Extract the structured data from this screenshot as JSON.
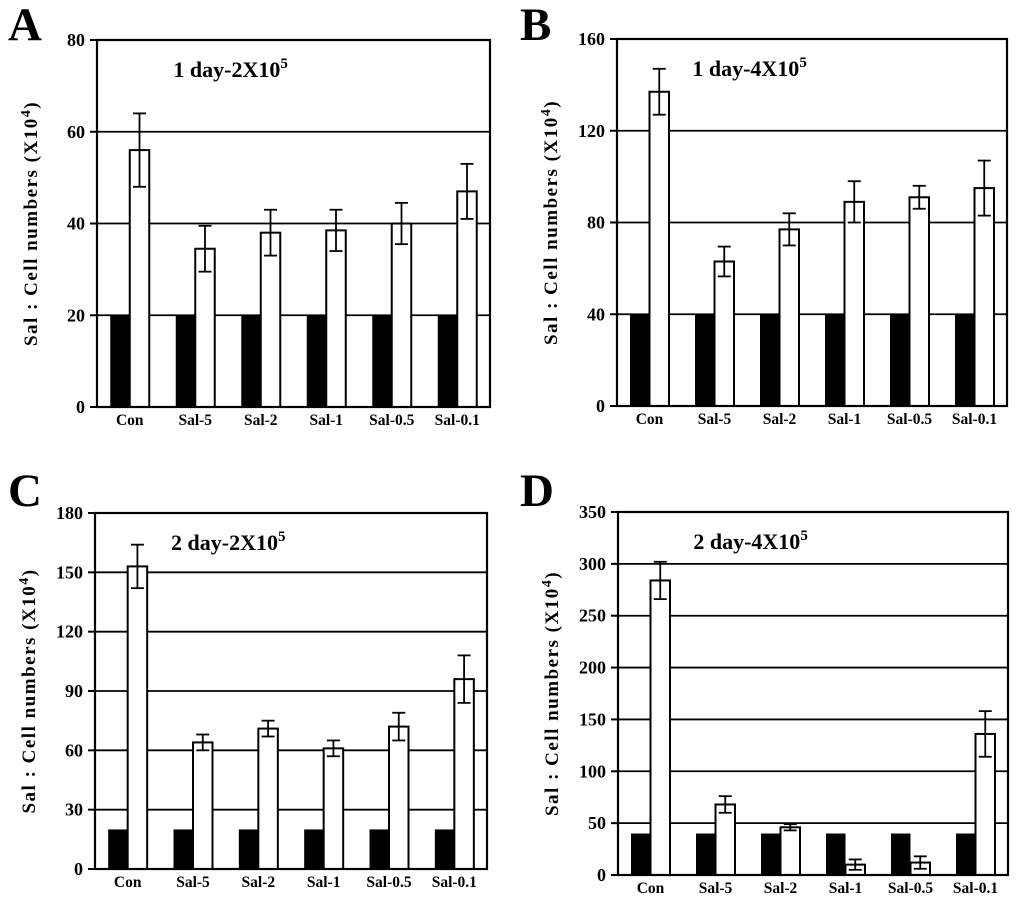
{
  "figure": {
    "background": "#ffffff",
    "panel_letters": [
      "A",
      "B",
      "C",
      "D"
    ]
  },
  "colors": {
    "background": "#ffffff",
    "filled_bar": "#000000",
    "open_bar": "#ffffff",
    "axis": "#000000",
    "gridline": "#000000"
  },
  "chart_data": [
    {
      "type": "bar",
      "panel_letter": "A",
      "title": "1 day-2X10",
      "title_sup": "5",
      "ylabel": "Sal : Cell numbers (X10",
      "ylabel_sup": "4",
      "ylabel_suffix": ")",
      "categories": [
        "Con",
        "Sal-5",
        "Sal-2",
        "Sal-1",
        "Sal-0.5",
        "Sal-0.1"
      ],
      "series": [
        {
          "name": "black bars (seeded 2X10^5)",
          "values": [
            20,
            20,
            20,
            20,
            20,
            20
          ]
        },
        {
          "name": "white bars (cell numbers)",
          "values": [
            56,
            34.5,
            38,
            38.5,
            40,
            47
          ],
          "errors": [
            8,
            5,
            5,
            4.5,
            4.5,
            6
          ]
        }
      ],
      "ylim": [
        0,
        80
      ],
      "ytick_step": 20,
      "yticks": [
        0,
        20,
        40,
        60,
        80
      ],
      "grid": true,
      "legend": "none"
    },
    {
      "type": "bar",
      "panel_letter": "B",
      "title": "1 day-4X10",
      "title_sup": "5",
      "ylabel": "Sal : Cell numbers (X10",
      "ylabel_sup": "4",
      "ylabel_suffix": ")",
      "categories": [
        "Con",
        "Sal-5",
        "Sal-2",
        "Sal-1",
        "Sal-0.5",
        "Sal-0.1"
      ],
      "series": [
        {
          "name": "black bars (seeded 4X10^5)",
          "values": [
            40,
            40,
            40,
            40,
            40,
            40
          ]
        },
        {
          "name": "white bars (cell numbers)",
          "values": [
            137,
            63,
            77,
            89,
            91,
            95
          ],
          "errors": [
            10,
            6.5,
            7,
            9,
            5,
            12
          ]
        }
      ],
      "ylim": [
        0,
        160
      ],
      "ytick_step": 40,
      "yticks": [
        0,
        40,
        80,
        120,
        160
      ],
      "grid": true,
      "legend": "none"
    },
    {
      "type": "bar",
      "panel_letter": "C",
      "title": "2 day-2X10",
      "title_sup": "5",
      "ylabel": "Sal : Cell numbers (X10",
      "ylabel_sup": "4",
      "ylabel_suffix": ")",
      "categories": [
        "Con",
        "Sal-5",
        "Sal-2",
        "Sal-1",
        "Sal-0.5",
        "Sal-0.1"
      ],
      "series": [
        {
          "name": "black bars (seeded 2X10^5)",
          "values": [
            20,
            20,
            20,
            20,
            20,
            20
          ]
        },
        {
          "name": "white bars (cell numbers)",
          "values": [
            153,
            64,
            71,
            61,
            72,
            96
          ],
          "errors": [
            11,
            4,
            4,
            4,
            7,
            12
          ]
        }
      ],
      "ylim": [
        0,
        180
      ],
      "ytick_step": 30,
      "yticks": [
        0,
        30,
        60,
        90,
        120,
        150,
        180
      ],
      "grid": true,
      "legend": "none"
    },
    {
      "type": "bar",
      "panel_letter": "D",
      "title": "2 day-4X10",
      "title_sup": "5",
      "ylabel": "Sal : Cell numbers (X10",
      "ylabel_sup": "4",
      "ylabel_suffix": ")",
      "categories": [
        "Con",
        "Sal-5",
        "Sal-2",
        "Sal-1",
        "Sal-0.5",
        "Sal-0.1"
      ],
      "series": [
        {
          "name": "black bars (seeded 4X10^5)",
          "values": [
            40,
            40,
            40,
            40,
            40,
            40
          ]
        },
        {
          "name": "white bars (cell numbers)",
          "values": [
            284,
            68,
            46,
            10,
            12,
            136
          ],
          "errors": [
            18,
            8,
            3,
            5,
            6,
            22
          ]
        }
      ],
      "ylim": [
        0,
        350
      ],
      "ytick_step": 50,
      "yticks": [
        0,
        50,
        100,
        150,
        200,
        250,
        300,
        350
      ],
      "grid": true,
      "legend": "none"
    }
  ]
}
